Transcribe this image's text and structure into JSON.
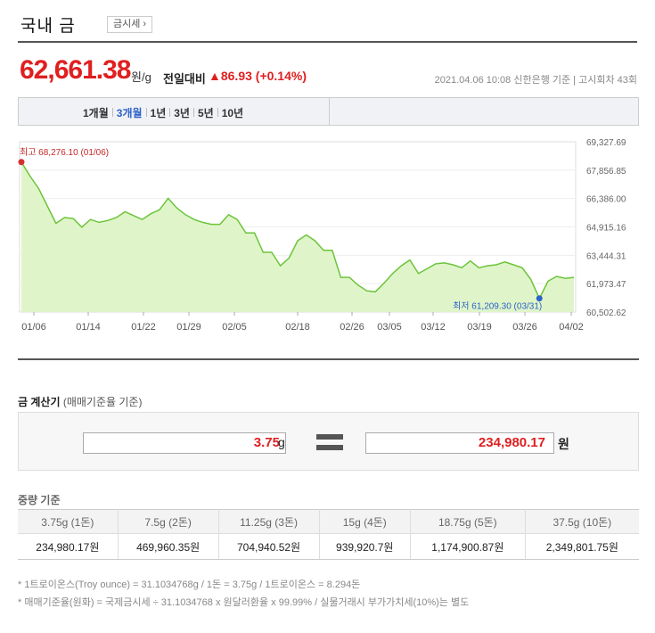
{
  "header": {
    "title": "국내 금",
    "subpage_link": "금시세 ›"
  },
  "price": {
    "value": "62,661.38",
    "unit": "원/g",
    "change_label": "전일대비",
    "change_value": "▲86.93 (+0.14%)",
    "source": "2021.04.06 10:08  신한은행 기준  |  고시회차 43회"
  },
  "tabs": [
    {
      "label": "1개월",
      "active": false
    },
    {
      "label": "3개월",
      "active": true
    },
    {
      "label": "1년",
      "active": false
    },
    {
      "label": "3년",
      "active": false
    },
    {
      "label": "5년",
      "active": false
    },
    {
      "label": "10년",
      "active": false
    }
  ],
  "chart_data": {
    "type": "area",
    "x_ticks": [
      "01/06",
      "01/14",
      "01/22",
      "01/29",
      "02/05",
      "02/18",
      "02/26",
      "03/05",
      "03/12",
      "03/19",
      "03/26",
      "04/02"
    ],
    "y_ticks": [
      "69,327.69",
      "67,856.85",
      "66,386.00",
      "64,915.16",
      "63,444.31",
      "61,973.47",
      "60,502.62"
    ],
    "ylim": [
      60502.62,
      69327.69
    ],
    "values": [
      68276.1,
      67550,
      66900,
      66000,
      65100,
      65400,
      65350,
      64900,
      65300,
      65150,
      65250,
      65400,
      65700,
      65500,
      65300,
      65600,
      65800,
      66400,
      65900,
      65550,
      65300,
      65150,
      65050,
      65050,
      65550,
      65300,
      64600,
      64600,
      63600,
      63600,
      62900,
      63300,
      64200,
      64500,
      64200,
      63700,
      63700,
      62300,
      62300,
      61900,
      61600,
      61550,
      62000,
      62500,
      62900,
      63200,
      62500,
      62750,
      63000,
      63050,
      62950,
      62800,
      63150,
      62800,
      62900,
      62950,
      63100,
      62950,
      62800,
      62200,
      61209.3,
      62100,
      62350,
      62250,
      62300
    ],
    "max_label": "최고  68,276.10 (01/06)",
    "min_label": "최저  61,209.30 (03/31)",
    "line_color": "#6cc43a",
    "fill_color": "#dff5c9"
  },
  "calculator": {
    "title": "금 계산기",
    "subtitle": "(매매기준율 기준)",
    "weight_value": "3.75",
    "weight_unit": "g",
    "price_value": "234,980.17",
    "price_unit": "원"
  },
  "weight_table": {
    "title": "중량 기준",
    "headers": [
      "3.75g (1돈)",
      "7.5g (2돈)",
      "11.25g (3돈)",
      "15g (4돈)",
      "18.75g (5돈)",
      "37.5g (10돈)"
    ],
    "values": [
      "234,980.17원",
      "469,960.35원",
      "704,940.52원",
      "939,920.7원",
      "1,174,900.87원",
      "2,349,801.75원"
    ]
  },
  "notes": [
    "* 1트로이온스(Troy ounce) = 31.1034768g / 1돈 = 3.75g / 1트로이온스 = 8.294돈",
    "* 매매기준율(원화) = 국제금시세 ÷ 31.1034768 x 원달러환율 x 99.99% / 실물거래시 부가가치세(10%)는 별도"
  ]
}
